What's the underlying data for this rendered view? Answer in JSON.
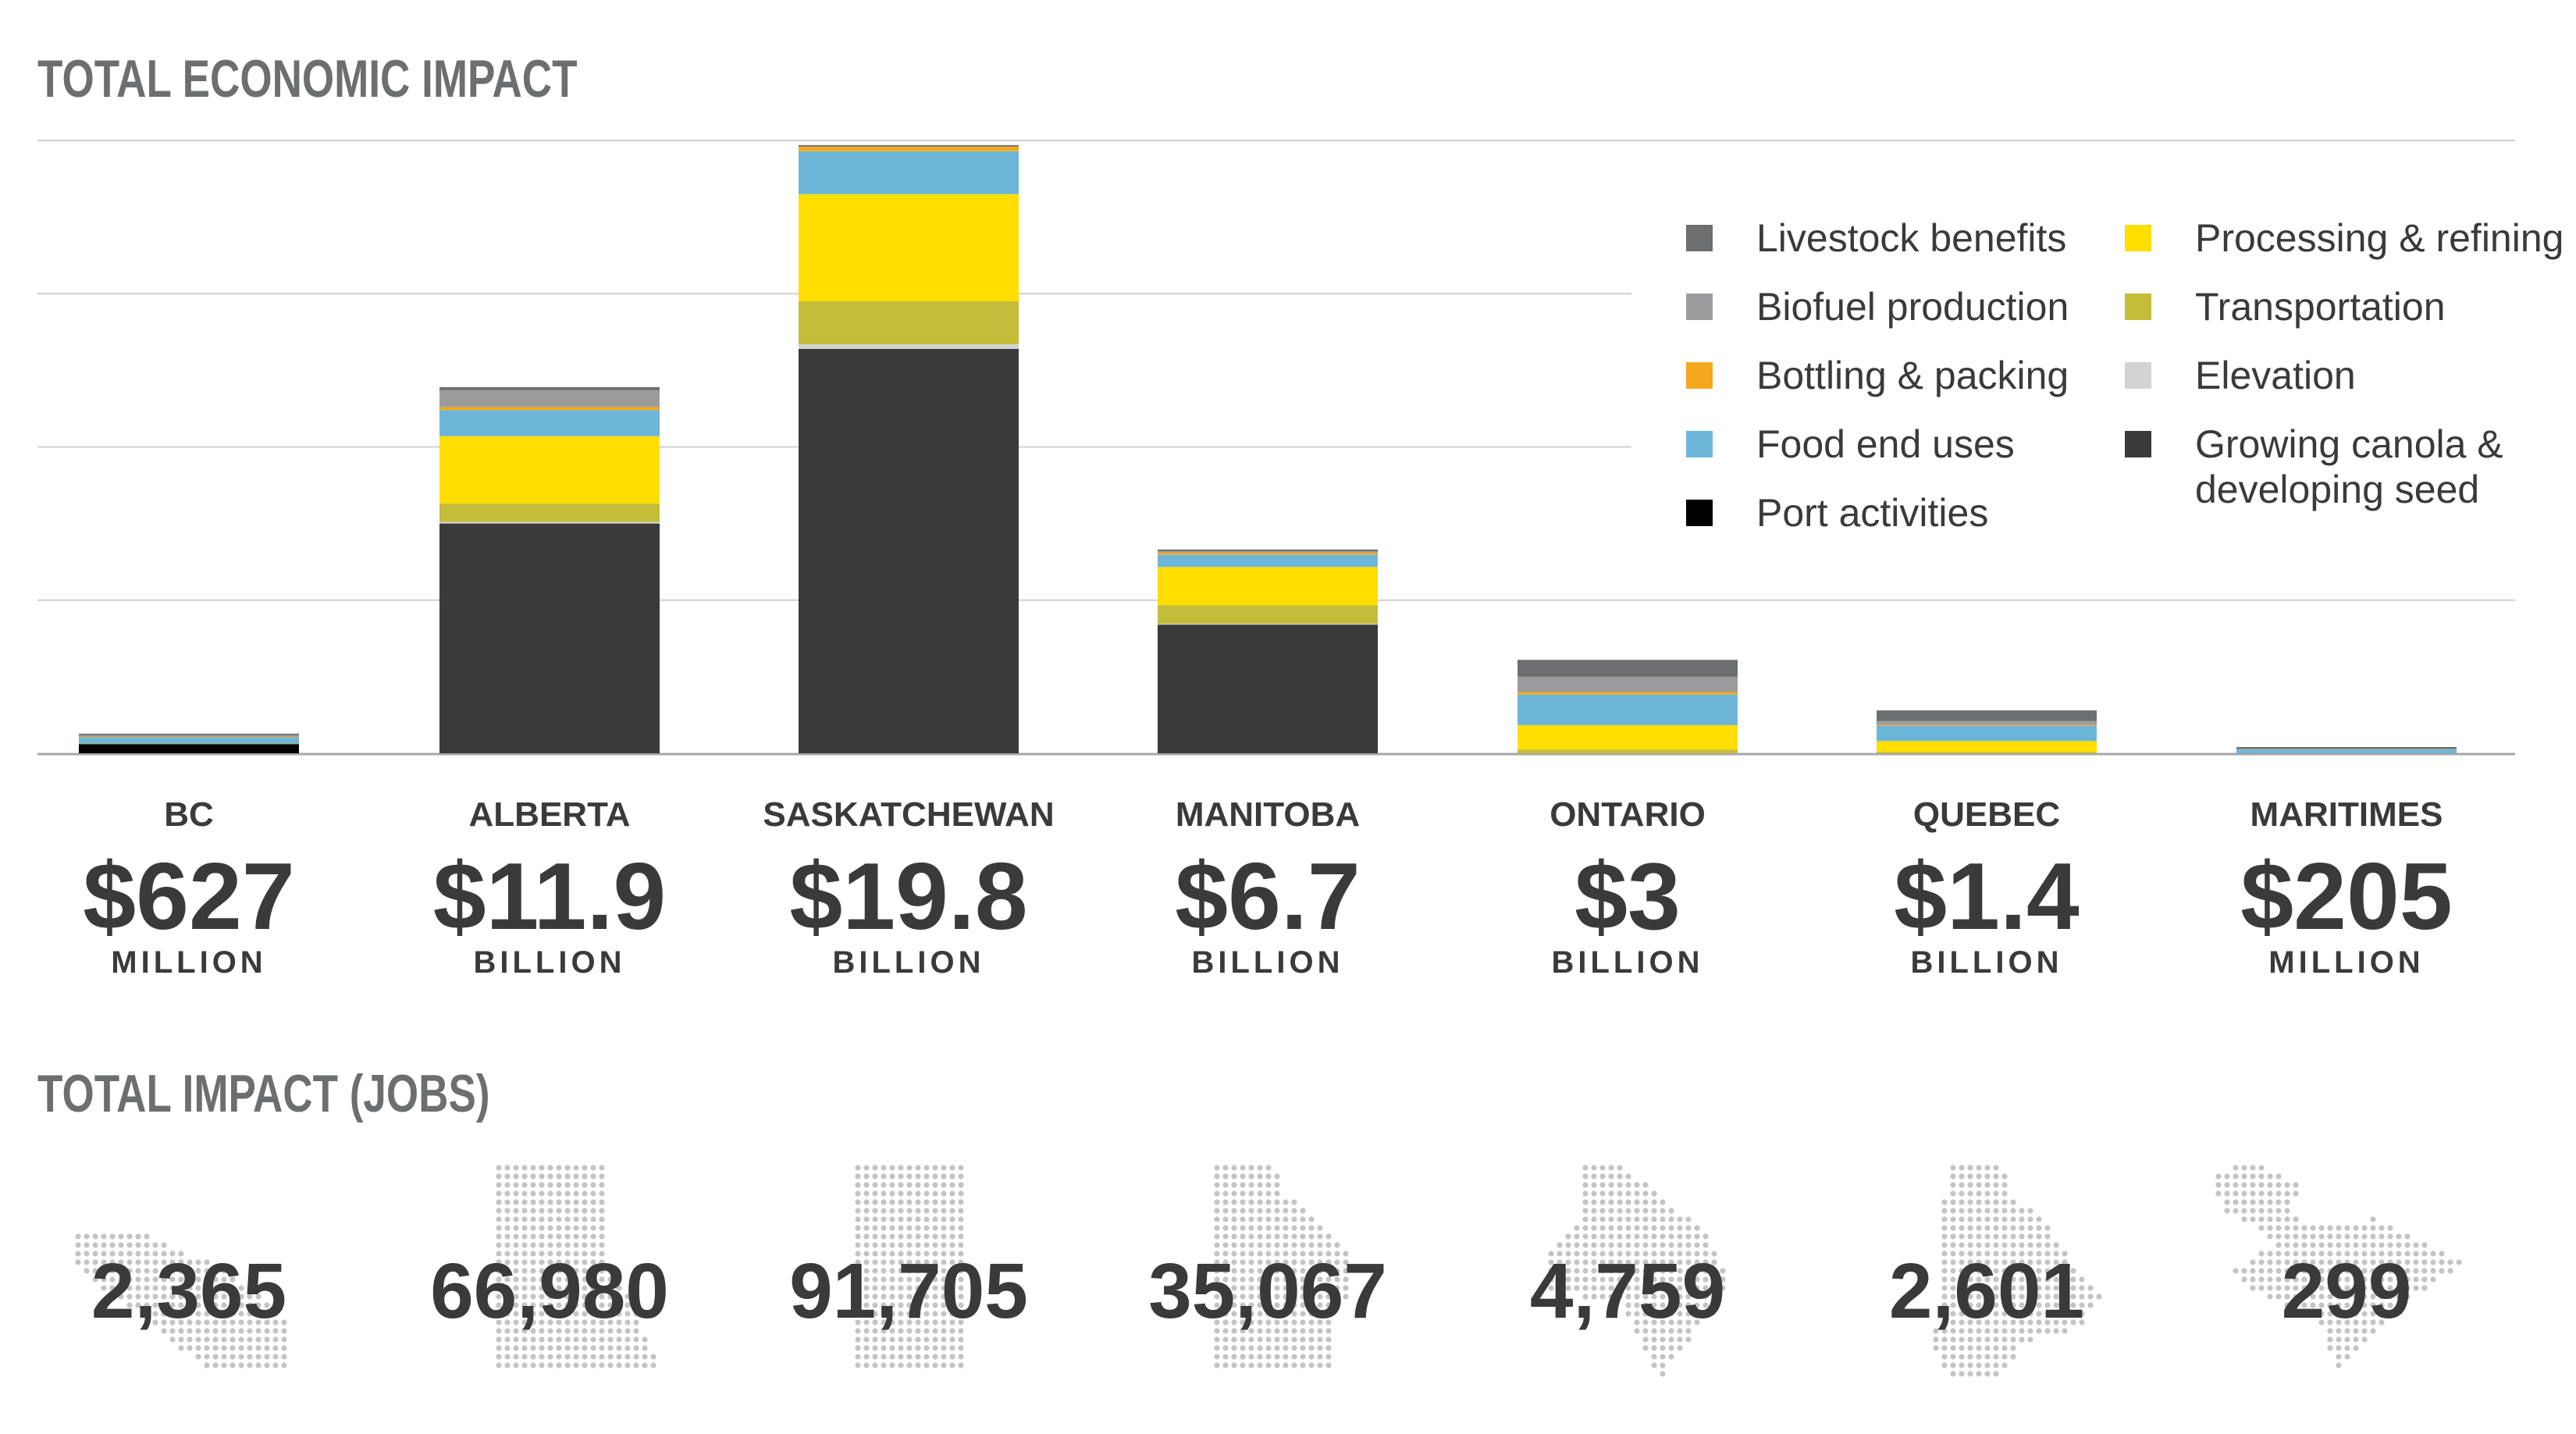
{
  "header": {
    "title": "TOTAL ECONOMIC IMPACT",
    "jobs_title": "TOTAL IMPACT (JOBS)"
  },
  "colors": {
    "Livestock benefits": "#6d6e70",
    "Biofuel production": "#9c9c9e",
    "Bottling & packing": "#f6a81c",
    "Food end uses": "#6cb6d9",
    "Port activities": "#000000",
    "Processing & refining": "#ffde00",
    "Transportation": "#c3bd3a",
    "Elevation": "#d3d3d3",
    "Growing canola & developing seed": "#3a3a3a",
    "gridline": "#cfcfcf",
    "jobs_map_dots": "#c4c4c4"
  },
  "chart_data": {
    "type": "bar",
    "stacked": true,
    "title": "TOTAL ECONOMIC IMPACT",
    "categories": [
      "BC",
      "ALBERTA",
      "SASKATCHEWAN",
      "MANITOBA",
      "ONTARIO",
      "QUEBEC",
      "MARITIMES"
    ],
    "ylim": [
      0,
      20
    ],
    "grid": true,
    "legend_position": "top-right",
    "series": [
      {
        "name": "Growing canola & developing seed",
        "values": [
          0.0,
          7.5,
          13.2,
          4.2,
          0.0,
          0.0,
          0.0
        ]
      },
      {
        "name": "Elevation",
        "values": [
          0.0,
          0.05,
          0.15,
          0.03,
          0.0,
          0.0,
          0.0
        ]
      },
      {
        "name": "Port activities",
        "values": [
          0.3,
          0.0,
          0.0,
          0.0,
          0.0,
          0.0,
          0.0
        ]
      },
      {
        "name": "Transportation",
        "values": [
          0.02,
          0.6,
          1.4,
          0.6,
          0.12,
          0.04,
          0.0
        ]
      },
      {
        "name": "Processing & refining",
        "values": [
          0.0,
          2.2,
          3.5,
          1.25,
          0.8,
          0.36,
          0.0
        ]
      },
      {
        "name": "Food end uses",
        "values": [
          0.2,
          0.85,
          1.4,
          0.4,
          1.0,
          0.5,
          0.11
        ]
      },
      {
        "name": "Bottling & packing",
        "values": [
          0.02,
          0.1,
          0.15,
          0.07,
          0.08,
          0.03,
          0.0
        ]
      },
      {
        "name": "Biofuel production",
        "values": [
          0.05,
          0.55,
          0.0,
          0.05,
          0.5,
          0.12,
          0.04
        ]
      },
      {
        "name": "Livestock benefits",
        "values": [
          0.04,
          0.1,
          0.05,
          0.03,
          0.55,
          0.35,
          0.055
        ]
      }
    ],
    "legend": [
      "Livestock benefits",
      "Biofuel production",
      "Bottling & packing",
      "Food end uses",
      "Port activities",
      "Processing & refining",
      "Transportation",
      "Elevation",
      "Growing canola & developing seed"
    ],
    "totals": [
      {
        "region": "BC",
        "amount": "$627",
        "unit": "MILLION"
      },
      {
        "region": "ALBERTA",
        "amount": "$11.9",
        "unit": "BILLION"
      },
      {
        "region": "SASKATCHEWAN",
        "amount": "$19.8",
        "unit": "BILLION"
      },
      {
        "region": "MANITOBA",
        "amount": "$6.7",
        "unit": "BILLION"
      },
      {
        "region": "ONTARIO",
        "amount": "$3",
        "unit": "BILLION"
      },
      {
        "region": "QUEBEC",
        "amount": "$1.4",
        "unit": "BILLION"
      },
      {
        "region": "MARITIMES",
        "amount": "$205",
        "unit": "MILLION"
      }
    ],
    "jobs": [
      {
        "region": "BC",
        "value": "2,365"
      },
      {
        "region": "ALBERTA",
        "value": "66,980"
      },
      {
        "region": "SASKATCHEWAN",
        "value": "91,705"
      },
      {
        "region": "MANITOBA",
        "value": "35,067"
      },
      {
        "region": "ONTARIO",
        "value": "4,759"
      },
      {
        "region": "QUEBEC",
        "value": "2,601"
      },
      {
        "region": "MARITIMES",
        "value": "299"
      }
    ]
  }
}
